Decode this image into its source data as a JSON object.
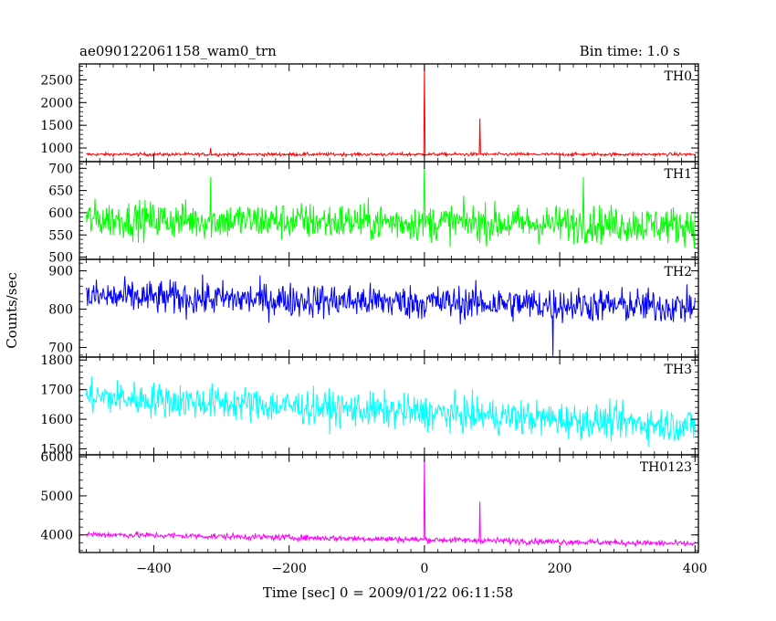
{
  "header": {
    "title": "ae090122061158_wam0_trn",
    "bin_time": "Bin time: 1.0 s"
  },
  "chart_data": {
    "type": "line",
    "title": "ae090122061158_wam0_trn",
    "subtitle": "Bin time: 1.0 s",
    "xlabel": "Time [sec] 0 = 2009/01/22 06:11:58",
    "ylabel": "Counts/sec",
    "xlim": [
      -510,
      405
    ],
    "x_ticks": [
      -400,
      -200,
      0,
      200,
      400
    ],
    "x_sampling": {
      "start": -500,
      "end": 400,
      "step": 1
    },
    "grid": false,
    "panels": [
      {
        "name": "TH0",
        "color": "#ff0000",
        "ylim": [
          700,
          2850
        ],
        "y_ticks": [
          1000,
          1500,
          2000,
          2500
        ],
        "baseline": 860,
        "noise": 25,
        "trend_per_sec": 0,
        "features": [
          {
            "x": -316,
            "value": 1000
          },
          {
            "x": 0,
            "value": 2830
          },
          {
            "x": 82,
            "value": 1650
          }
        ]
      },
      {
        "name": "TH1",
        "color": "#00ff00",
        "ylim": [
          495,
          715
        ],
        "y_ticks": [
          500,
          550,
          600,
          650,
          700
        ],
        "baseline": 578,
        "noise": 30,
        "trend_per_sec": -0.015,
        "features": [
          {
            "x": -316,
            "value": 680
          },
          {
            "x": 0,
            "value": 715
          },
          {
            "x": 235,
            "value": 680
          }
        ]
      },
      {
        "name": "TH2",
        "color": "#0000ff",
        "ylim": [
          675,
          930
        ],
        "y_ticks": [
          700,
          800,
          900
        ],
        "baseline": 818,
        "noise": 32,
        "trend_per_sec": -0.03,
        "features": [
          {
            "x": 190,
            "value": 678
          }
        ]
      },
      {
        "name": "TH3",
        "color": "#00ffff",
        "ylim": [
          1480,
          1810
        ],
        "y_ticks": [
          1500,
          1600,
          1700,
          1800
        ],
        "baseline": 1622,
        "noise": 42,
        "trend_per_sec": -0.11,
        "features": []
      },
      {
        "name": "TH0123",
        "color": "#ff00ff",
        "ylim": [
          3550,
          6050
        ],
        "y_ticks": [
          4000,
          5000,
          6000
        ],
        "baseline": 3880,
        "noise": 55,
        "trend_per_sec": -0.27,
        "features": [
          {
            "x": 0,
            "value": 6030
          },
          {
            "x": 82,
            "value": 4850
          }
        ]
      }
    ]
  }
}
